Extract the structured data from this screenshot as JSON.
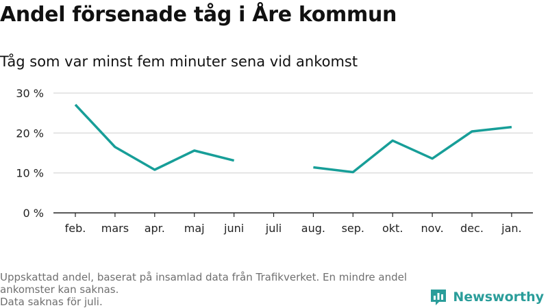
{
  "header": {
    "title": "Andel försenade tåg i Åre kommun",
    "subtitle": "Tåg som var minst fem minuter sena vid ankomst"
  },
  "footer": {
    "note_line1": "Uppskattad andel, baserat på insamlad data från Trafikverket. En mindre andel ankomster kan saknas.",
    "note_line2": "Data saknas för juli.",
    "brand": "Newsworthy"
  },
  "colors": {
    "line": "#179e98",
    "grid": "#dddddd",
    "axis": "#222222",
    "brand": "#2a9d9a"
  },
  "chart_data": {
    "type": "line",
    "categories": [
      "feb.",
      "mars",
      "apr.",
      "maj",
      "juni",
      "juli",
      "aug.",
      "sep.",
      "okt.",
      "nov.",
      "dec.",
      "jan."
    ],
    "series": [
      {
        "values": [
          27.1,
          16.5,
          10.8,
          15.6,
          13.1,
          null,
          11.4,
          10.2,
          18.1,
          13.6,
          20.4,
          21.5
        ]
      }
    ],
    "ylim": [
      0,
      30
    ],
    "yticks": [
      0,
      10,
      20,
      30
    ],
    "ytick_labels": [
      "0 %",
      "10 %",
      "20 %",
      "30 %"
    ],
    "grid": true,
    "xlabel": "",
    "ylabel": ""
  }
}
